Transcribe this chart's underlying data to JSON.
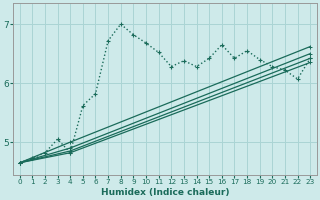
{
  "xlabel": "Humidex (Indice chaleur)",
  "bg_color": "#ceeaea",
  "line_color": "#1a6b5a",
  "grid_color": "#aad4d4",
  "xlim": [
    -0.5,
    23.5
  ],
  "ylim": [
    4.45,
    7.35
  ],
  "yticks": [
    5,
    6,
    7
  ],
  "xticks": [
    0,
    1,
    2,
    3,
    4,
    5,
    6,
    7,
    8,
    9,
    10,
    11,
    12,
    13,
    14,
    15,
    16,
    17,
    18,
    19,
    20,
    21,
    22,
    23
  ],
  "line_jagged_x": [
    0,
    1,
    2,
    3,
    4,
    5,
    6,
    7,
    8,
    9,
    10,
    11,
    12,
    13,
    14,
    15,
    16,
    17,
    18,
    19,
    20,
    21,
    22,
    23
  ],
  "line_jagged_y": [
    4.65,
    4.73,
    4.82,
    5.05,
    4.82,
    5.62,
    5.82,
    6.72,
    7.0,
    6.82,
    6.68,
    6.52,
    6.28,
    6.38,
    6.28,
    6.42,
    6.65,
    6.42,
    6.55,
    6.4,
    6.28,
    6.22,
    6.07,
    6.42
  ],
  "line1_x": [
    0,
    4,
    23
  ],
  "line1_y": [
    4.65,
    5.0,
    6.62
  ],
  "line2_x": [
    0,
    4,
    23
  ],
  "line2_y": [
    4.65,
    4.9,
    6.5
  ],
  "line3_x": [
    0,
    4,
    23
  ],
  "line3_y": [
    4.65,
    4.85,
    6.42
  ],
  "line4_x": [
    0,
    4,
    23
  ],
  "line4_y": [
    4.65,
    4.82,
    6.35
  ],
  "lw": 1.0,
  "lw_linear": 0.9
}
